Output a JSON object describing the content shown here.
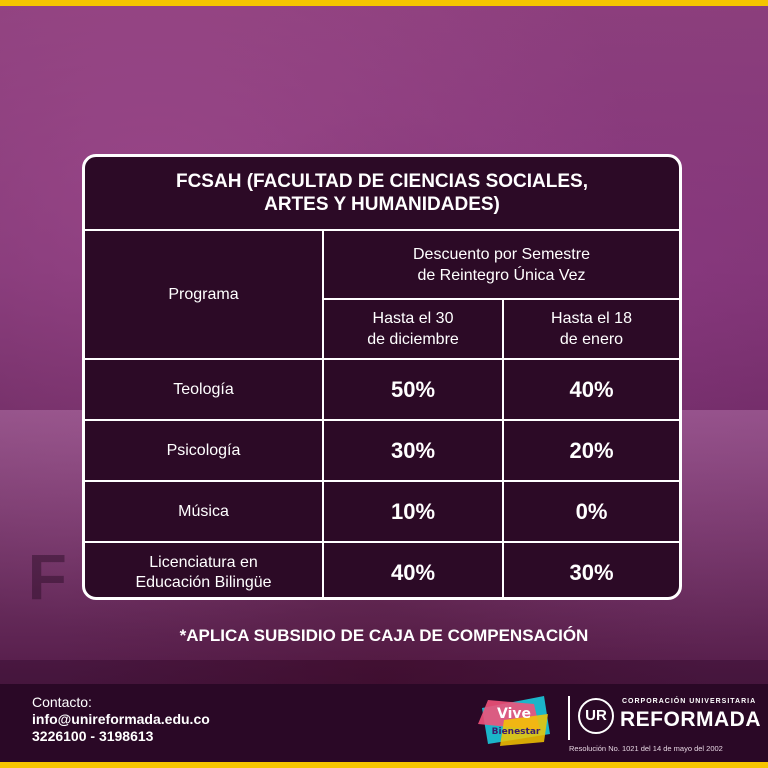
{
  "card": {
    "title": "FCSAH (FACULTAD DE CIENCIAS SOCIALES,\nARTES Y HUMANIDADES)",
    "header": {
      "program": "Programa",
      "discount": "Descuento por Semestre\nde Reintegro Única Vez",
      "col1": "Hasta el 30\nde diciembre",
      "col2": "Hasta el 18\nde enero"
    },
    "rows": [
      {
        "program": "Teología",
        "d1": "50%",
        "d2": "40%"
      },
      {
        "program": "Psicología",
        "d1": "30%",
        "d2": "20%"
      },
      {
        "program": "Música",
        "d1": "10%",
        "d2": "0%"
      },
      {
        "program": "Licenciatura en\nEducación Bilingüe",
        "d1": "40%",
        "d2": "30%"
      }
    ]
  },
  "note": "*APLICA SUBSIDIO DE CAJA DE COMPENSACIÓN",
  "footer": {
    "contact_label": "Contacto:",
    "email": "info@unireformada.edu.co",
    "phones": "3226100 - 3198613",
    "vive_logo_text": "Vive Bienestar",
    "institution_small": "CORPORACIÓN UNIVERSITARIA",
    "institution_name": "REFORMADA",
    "resolution": "Resolución No. 1021 del 14 de mayo del 2002"
  },
  "colors": {
    "frame": "#f5c500",
    "card_bg": "#2c0a26",
    "background": "#6a2d5f"
  }
}
